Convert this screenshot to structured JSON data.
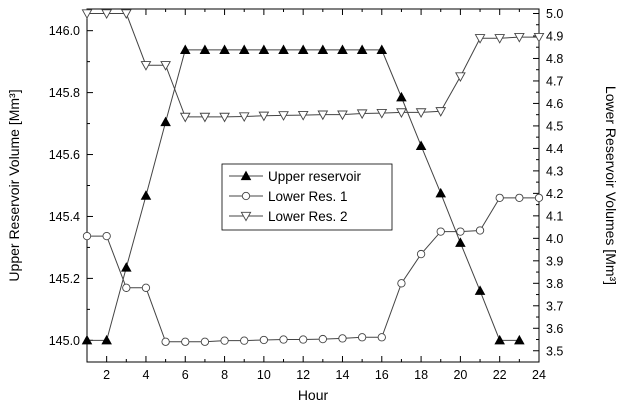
{
  "chart_data": {
    "type": "line",
    "xlabel": "Hour",
    "ylabel_left": "Upper Reservoir Volume [Mm³]",
    "ylabel_right": "Lower Reservoir Volumes [Mm³]",
    "xlim": [
      1,
      24
    ],
    "ylim_left": [
      144.93,
      146.07
    ],
    "ylim_right": [
      3.45,
      5.02
    ],
    "x_ticks": [
      2,
      4,
      6,
      8,
      10,
      12,
      14,
      16,
      18,
      20,
      22,
      24
    ],
    "y_left_ticks": [
      "145.0",
      "145.2",
      "145.4",
      "145.6",
      "145.8",
      "146.0"
    ],
    "y_right_ticks": [
      "3.5",
      "3.6",
      "3.7",
      "3.8",
      "3.9",
      "4.0",
      "4.1",
      "4.2",
      "4.3",
      "4.4",
      "4.5",
      "4.6",
      "4.7",
      "4.8",
      "4.9",
      "5.0"
    ],
    "legend_position": "center",
    "grid": false,
    "x": [
      1,
      2,
      3,
      4,
      5,
      6,
      7,
      8,
      9,
      10,
      11,
      12,
      13,
      14,
      15,
      16,
      17,
      18,
      19,
      20,
      21,
      22,
      23,
      24
    ],
    "series": [
      {
        "name": "Upper reservoir",
        "axis": "left",
        "marker": "filled-triangle-up",
        "x": [
          1,
          2,
          3,
          4,
          5,
          6,
          7,
          8,
          9,
          10,
          11,
          12,
          13,
          14,
          15,
          16,
          17,
          18,
          19,
          20,
          21,
          22,
          23
        ],
        "values": [
          145.0,
          145.0,
          145.235,
          145.467,
          145.705,
          145.938,
          145.938,
          145.938,
          145.938,
          145.938,
          145.938,
          145.938,
          145.938,
          145.938,
          145.938,
          145.938,
          145.785,
          145.628,
          145.475,
          145.315,
          145.16,
          145.0,
          145.0
        ]
      },
      {
        "name": "Lower Res. 1",
        "axis": "right",
        "marker": "open-circle",
        "values": [
          4.01,
          4.01,
          3.78,
          3.78,
          3.54,
          3.54,
          3.54,
          3.545,
          3.545,
          3.548,
          3.55,
          3.55,
          3.552,
          3.555,
          3.56,
          3.56,
          3.8,
          3.93,
          4.03,
          4.03,
          4.035,
          4.18,
          4.18,
          4.18
        ]
      },
      {
        "name": "Lower Res. 2",
        "axis": "right",
        "marker": "open-triangle-down",
        "values": [
          5.0,
          5.0,
          5.0,
          4.77,
          4.77,
          4.54,
          4.54,
          4.54,
          4.542,
          4.545,
          4.547,
          4.548,
          4.55,
          4.55,
          4.555,
          4.557,
          4.56,
          4.56,
          4.565,
          4.72,
          4.89,
          4.89,
          4.895,
          4.895
        ]
      }
    ]
  }
}
